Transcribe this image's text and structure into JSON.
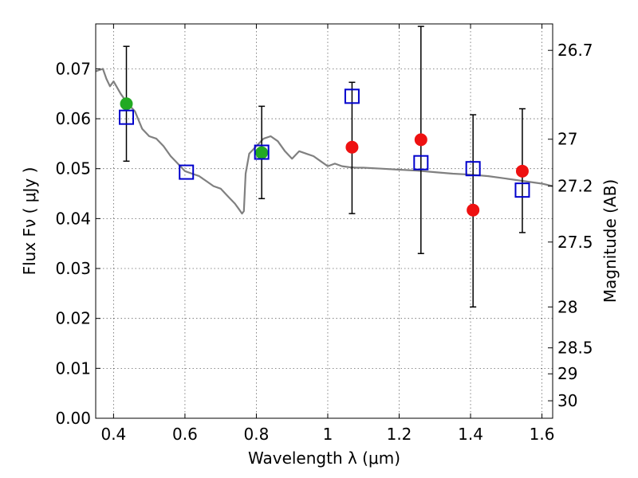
{
  "chart_data": {
    "type": "scatter",
    "xlabel": "Wavelength  λ (μm)",
    "ylabel": "Flux  Fν  ( μJy )",
    "ylabel_right": "Magnitude (AB)",
    "xlim": [
      0.35,
      1.63
    ],
    "ylim": [
      0.0,
      0.079
    ],
    "grid": true,
    "x_ticks": [
      0.4,
      0.6,
      0.8,
      1.0,
      1.2,
      1.4,
      1.6
    ],
    "x_tick_labels": [
      "0.4",
      "0.6",
      "0.8",
      "1",
      "1.2",
      "1.4",
      "1.6"
    ],
    "y_ticks": [
      0.0,
      0.01,
      0.02,
      0.03,
      0.04,
      0.05,
      0.06,
      0.07
    ],
    "y_tick_labels": [
      "0.00",
      "0.01",
      "0.02",
      "0.03",
      "0.04",
      "0.05",
      "0.06",
      "0.07"
    ],
    "right_ticks": [
      {
        "flux": 0.0737,
        "label": "26.7"
      },
      {
        "flux": 0.0559,
        "label": "27"
      },
      {
        "flux": 0.0465,
        "label": "27.2"
      },
      {
        "flux": 0.0353,
        "label": "27.5"
      },
      {
        "flux": 0.0223,
        "label": "28"
      },
      {
        "flux": 0.0141,
        "label": "28.5"
      },
      {
        "flux": 0.0089,
        "label": "29"
      },
      {
        "flux": 0.0035,
        "label": "30"
      }
    ],
    "series": [
      {
        "style": "line",
        "color": "#808080",
        "x": [
          0.35,
          0.37,
          0.38,
          0.39,
          0.4,
          0.42,
          0.44,
          0.46,
          0.48,
          0.5,
          0.52,
          0.54,
          0.56,
          0.58,
          0.6,
          0.62,
          0.64,
          0.66,
          0.68,
          0.7,
          0.72,
          0.74,
          0.75,
          0.76,
          0.765,
          0.77,
          0.78,
          0.8,
          0.82,
          0.84,
          0.86,
          0.88,
          0.9,
          0.92,
          0.94,
          0.96,
          0.98,
          1.0,
          1.02,
          1.04,
          1.06,
          1.08,
          1.1,
          1.15,
          1.2,
          1.25,
          1.3,
          1.35,
          1.4,
          1.45,
          1.5,
          1.55,
          1.6,
          1.63
        ],
        "y": [
          0.0695,
          0.07,
          0.068,
          0.0665,
          0.0675,
          0.065,
          0.063,
          0.0615,
          0.058,
          0.0565,
          0.056,
          0.0545,
          0.0525,
          0.051,
          0.0495,
          0.049,
          0.0485,
          0.0475,
          0.0465,
          0.046,
          0.0445,
          0.043,
          0.042,
          0.041,
          0.0415,
          0.049,
          0.053,
          0.0545,
          0.056,
          0.0565,
          0.0555,
          0.0535,
          0.052,
          0.0535,
          0.053,
          0.0525,
          0.0515,
          0.0505,
          0.051,
          0.0505,
          0.0503,
          0.0502,
          0.0502,
          0.05,
          0.0498,
          0.0496,
          0.0493,
          0.049,
          0.0488,
          0.0485,
          0.048,
          0.0475,
          0.047,
          0.0465
        ]
      },
      {
        "name": "",
        "style": "marker",
        "marker": "circle",
        "color": "#22aa22",
        "x": [
          0.436,
          0.815
        ],
        "y": [
          0.063,
          0.0532
        ]
      },
      {
        "name": "",
        "style": "marker",
        "marker": "circle",
        "color": "#ee1111",
        "x": [
          1.068,
          1.261,
          1.407,
          1.545
        ],
        "y": [
          0.0543,
          0.0558,
          0.0417,
          0.0495
        ]
      },
      {
        "name": "",
        "style": "marker",
        "marker": "square-open",
        "color": "#0000cc",
        "x": [
          0.436,
          0.604,
          0.815,
          1.068,
          1.261,
          1.407,
          1.545
        ],
        "y": [
          0.0603,
          0.0493,
          0.0533,
          0.0645,
          0.0512,
          0.05,
          0.0457
        ]
      }
    ],
    "errorbars": [
      {
        "x": 0.436,
        "low": 0.0515,
        "high": 0.0745
      },
      {
        "x": 0.815,
        "low": 0.044,
        "high": 0.0625
      },
      {
        "x": 1.068,
        "low": 0.041,
        "high": 0.0673
      },
      {
        "x": 1.261,
        "low": 0.033,
        "high": 0.0785
      },
      {
        "x": 1.407,
        "low": 0.0223,
        "high": 0.0608
      },
      {
        "x": 1.545,
        "low": 0.0372,
        "high": 0.062
      }
    ]
  }
}
